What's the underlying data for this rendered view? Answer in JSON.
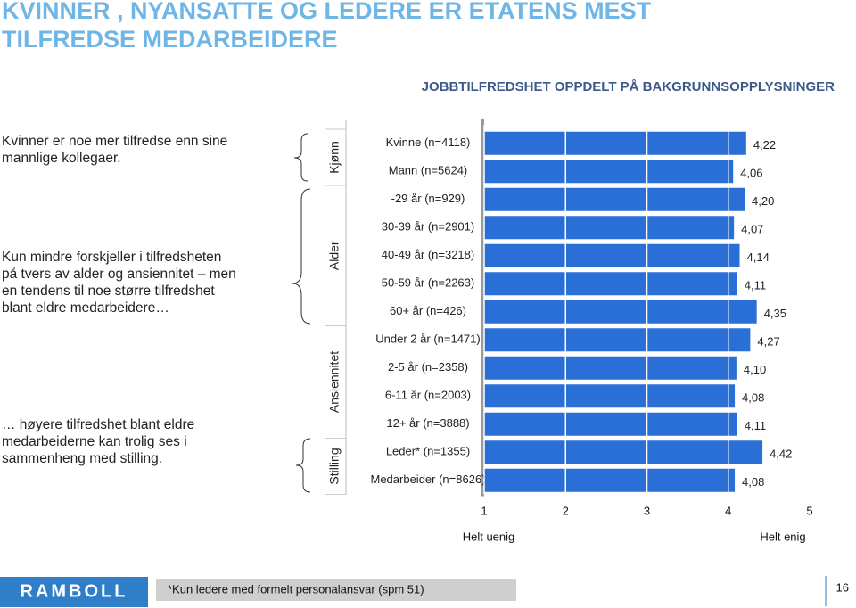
{
  "title": [
    "KVINNER , NYANSATTE OG LEDERE ER ETATENS MEST",
    "TILFREDSE MEDARBEIDERE"
  ],
  "notes": [
    [
      "Kvinner er noe mer tilfredse enn sine",
      "mannlige kollegaer."
    ],
    [
      "Kun mindre forskjeller i tilfredsheten",
      "på tvers av alder og ansiennitet – men",
      "en tendens til noe større tilfredshet",
      "blant eldre medarbeidere…"
    ],
    [
      "… høyere tilfredshet blant eldre",
      "medarbeiderne kan trolig ses i",
      "sammenheng med stilling."
    ]
  ],
  "logo": "RAMBOLL",
  "footnote": "*Kun ledere med formelt personalansvar (spm 51)",
  "page_number": "16",
  "chart_data": {
    "type": "bar",
    "subtitle": "JOBBTILFREDSHET OPPDELT PÅ BAKGRUNNSOPPLYSNINGER",
    "color": "#2a6fd6",
    "xlim": [
      1,
      5
    ],
    "xticks": [
      1,
      2,
      3,
      4,
      5
    ],
    "x_left_label": "Helt uenig",
    "x_right_label": "Helt enig",
    "groups": [
      {
        "label": "Kjønn",
        "categories": [
          "Kvinne (n=4118)",
          "Mann (n=5624)"
        ],
        "values": [
          4.22,
          4.06
        ],
        "value_labels": [
          "4,22",
          "4,06"
        ]
      },
      {
        "label": "Alder",
        "categories": [
          "-29 år (n=929)",
          "30-39 år (n=2901)",
          "40-49 år (n=3218)",
          "50-59 år (n=2263)",
          "60+ år (n=426)"
        ],
        "values": [
          4.2,
          4.07,
          4.14,
          4.11,
          4.35
        ],
        "value_labels": [
          "4,20",
          "4,07",
          "4,14",
          "4,11",
          "4,35"
        ]
      },
      {
        "label": "Ansiennitet",
        "categories": [
          "Under 2 år (n=1471)",
          "2-5 år (n=2358)",
          "6-11 år (n=2003)",
          "12+ år (n=3888)"
        ],
        "values": [
          4.27,
          4.1,
          4.08,
          4.11
        ],
        "value_labels": [
          "4,27",
          "4,10",
          "4,08",
          "4,11"
        ]
      },
      {
        "label": "Stilling",
        "categories": [
          "Leder* (n=1355)",
          "Medarbeider (n=8626)"
        ],
        "values": [
          4.42,
          4.08
        ],
        "value_labels": [
          "4,42",
          "4,08"
        ]
      }
    ]
  }
}
